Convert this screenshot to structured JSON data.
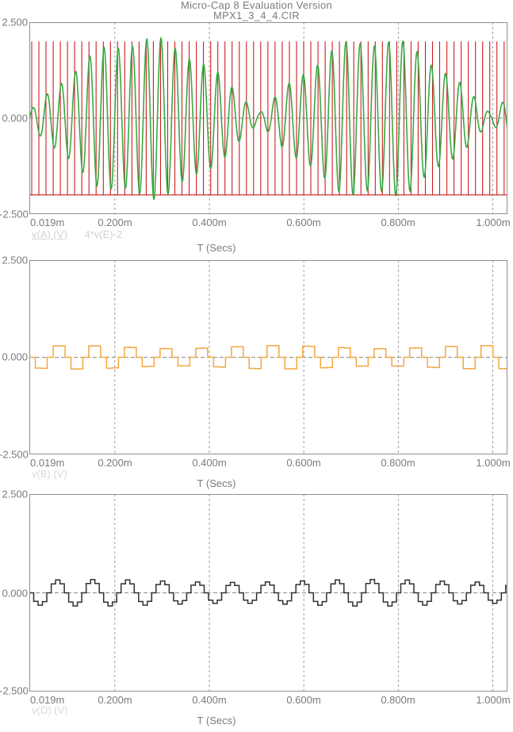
{
  "window": {
    "title_line1": "Micro-Cap 8 Evaluation Version",
    "title_line2": "MPX1_3_4_4.CIR"
  },
  "colors": {
    "plot_border": "#8f8f8f",
    "grid": "#9c9c9c",
    "zero_line": "#8a8a8a",
    "tick_text": "#7b7b7b",
    "title_text": "#7b7b7b",
    "legend_text": "#d2d2d2",
    "series_green": "#3aa844",
    "series_red": "#cc1d1d",
    "series_orange": "#f3a73e",
    "series_black": "#303030"
  },
  "chart_data": [
    {
      "type": "line",
      "title": "",
      "xlabel": "T (Secs)",
      "ylabel": "",
      "x_ticks": [
        "0.019m",
        "0.200m",
        "0.400m",
        "0.600m",
        "0.800m",
        "1.000m"
      ],
      "x_tick_ms": [
        0.019,
        0.2,
        0.4,
        0.6,
        0.8,
        1.0
      ],
      "x_range_ms": [
        0.019,
        1.031
      ],
      "y_ticks": [
        "2.500",
        "0.000",
        "-2.500"
      ],
      "ylim": [
        -2.5,
        2.5
      ],
      "grid": {
        "vertical_at_ms": [
          0.2,
          0.4,
          0.6,
          0.8,
          1.0
        ],
        "horizontal_at_v": [
          0
        ]
      },
      "legend": [
        {
          "label": "v(A) (V)",
          "underline": true
        },
        {
          "label": "4*v(E)-2",
          "underline": false
        }
      ],
      "series": [
        {
          "name": "v(A) (V)",
          "color": "#3aa844",
          "kind": "am_sine",
          "carrier_cycles_per_ms": 33.2,
          "envelope_min_v": 0.12,
          "envelope_max_v": 2.15,
          "envelope_lobe_period_ms": 0.49,
          "envelope_lobe_start_ms": 0.015,
          "envelope_ripple_depth": 0.07,
          "envelope_ripple_freq_per_ms": 7.7
        },
        {
          "name": "4*v(E)-2",
          "color": "#cc1d1d",
          "kind": "pulse_comb",
          "low_v": -2.0,
          "high_v": 2.0,
          "first_pulse_ms": 0.024,
          "spacing_ms": 0.01515
        }
      ]
    },
    {
      "type": "line",
      "title": "",
      "xlabel": "T (Secs)",
      "ylabel": "",
      "x_ticks": [
        "0.019m",
        "0.200m",
        "0.400m",
        "0.600m",
        "0.800m",
        "1.000m"
      ],
      "x_tick_ms": [
        0.019,
        0.2,
        0.4,
        0.6,
        0.8,
        1.0
      ],
      "x_range_ms": [
        0.019,
        1.031
      ],
      "y_ticks": [
        "2.500",
        "0.000",
        "-2.500"
      ],
      "ylim": [
        -2.5,
        2.5
      ],
      "grid": {
        "vertical_at_ms": [
          0.2,
          0.4,
          0.6,
          0.8,
          1.0
        ],
        "horizontal_at_v": [
          0
        ]
      },
      "legend": [
        {
          "label": "v(B) (V)",
          "underline": false
        }
      ],
      "series": [
        {
          "name": "v(B) (V)",
          "color": "#f3a73e",
          "kind": "staircase",
          "step_ms": 0.01258,
          "pattern_v": [
            0,
            -0.26,
            -0.26,
            0,
            0.26,
            0.26
          ],
          "amp_mod_depth": 0.15,
          "amp_mod_freq_per_ms": 2.3
        }
      ]
    },
    {
      "type": "line",
      "title": "",
      "xlabel": "T (Secs)",
      "ylabel": "",
      "x_ticks": [
        "0.019m",
        "0.200m",
        "0.400m",
        "0.600m",
        "0.800m",
        "1.000m"
      ],
      "x_tick_ms": [
        0.019,
        0.2,
        0.4,
        0.6,
        0.8,
        1.0
      ],
      "x_range_ms": [
        0.019,
        1.031
      ],
      "y_ticks": [
        "2.500",
        "0.000",
        "-2.500"
      ],
      "ylim": [
        -2.5,
        2.5
      ],
      "grid": {
        "vertical_at_ms": [
          0.2,
          0.4,
          0.6,
          0.8,
          1.0
        ],
        "horizontal_at_v": [
          0
        ]
      },
      "legend": [
        {
          "label": "v(D) (V)",
          "underline": false
        }
      ],
      "series": [
        {
          "name": "v(D) (V)",
          "color": "#303030",
          "kind": "staircase",
          "step_ms": 0.00925,
          "pattern_v": [
            0,
            -0.21,
            -0.3,
            -0.21,
            0,
            0.21,
            0.3,
            0.21
          ],
          "amp_mod_depth": 0.12,
          "amp_mod_freq_per_ms": 1.7
        }
      ]
    }
  ]
}
